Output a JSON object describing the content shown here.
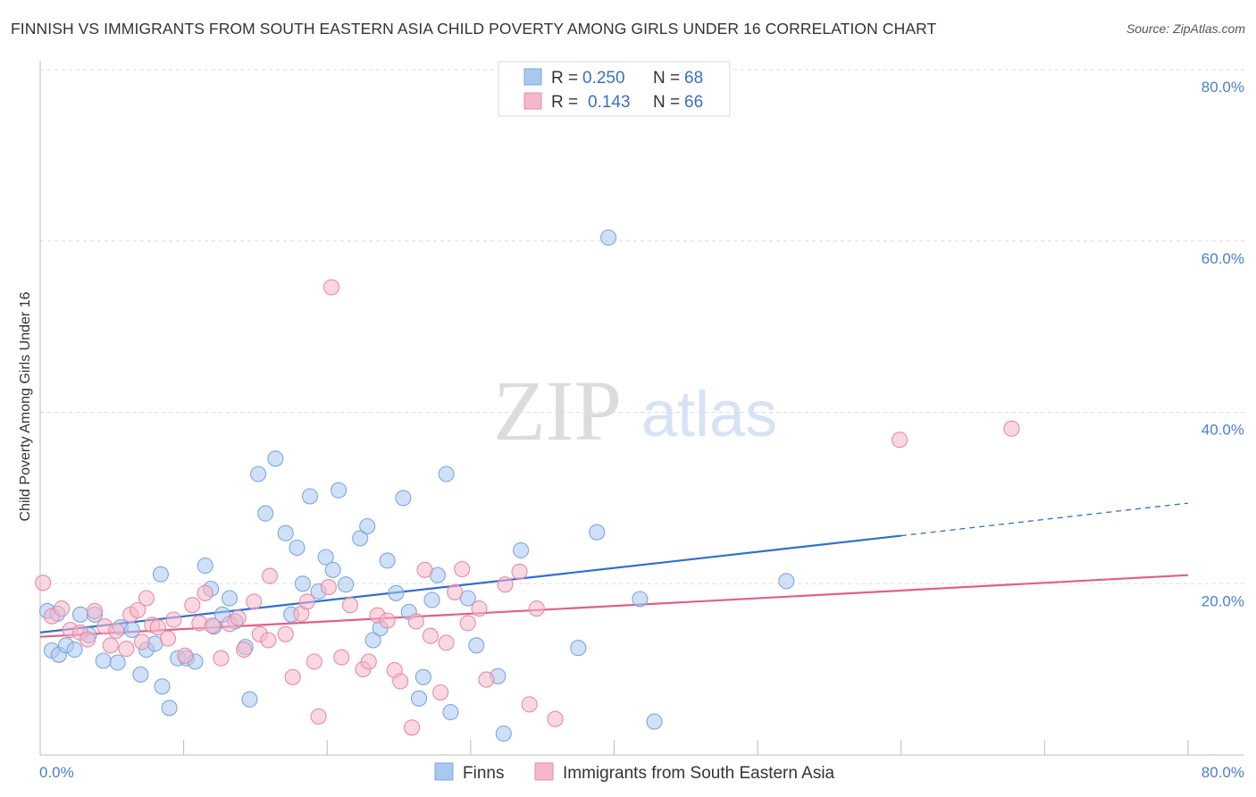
{
  "header": {
    "title": "FINNISH VS IMMIGRANTS FROM SOUTH EASTERN ASIA CHILD POVERTY AMONG GIRLS UNDER 16 CORRELATION CHART",
    "source": "Source: ZipAtlas.com"
  },
  "watermark": {
    "zip": "ZIP",
    "atlas": "atlas"
  },
  "legend": {
    "r_label": "R =",
    "n_label": "N =",
    "rows": [
      {
        "r": "0.250",
        "n": "68",
        "color": "#a9c8f0"
      },
      {
        "r": "0.143",
        "n": "66",
        "color": "#f5b8cb"
      }
    ]
  },
  "bottom_legend": {
    "series1": "Finns",
    "series2": "Immigrants from South Eastern Asia"
  },
  "chart_data": {
    "type": "scatter",
    "title": "FINNISH VS IMMIGRANTS FROM SOUTH EASTERN ASIA CHILD POVERTY AMONG GIRLS UNDER 16 CORRELATION CHART",
    "xlabel": "",
    "ylabel": "Child Poverty Among Girls Under 16",
    "xlim": [
      0,
      80
    ],
    "ylim": [
      0,
      80
    ],
    "x_tick_labels": [
      "0.0%",
      "80.0%"
    ],
    "y_ticks": [
      20,
      40,
      60,
      80
    ],
    "y_tick_labels": [
      "20.0%",
      "40.0%",
      "60.0%",
      "80.0%"
    ],
    "grid": true,
    "legend_position": "top-center",
    "series": [
      {
        "name": "Finns",
        "color": "#a9c8f0",
        "stroke": "#7ba7e0",
        "r": 0.25,
        "n": 68,
        "trend": {
          "x0": 0,
          "y0": 14.3,
          "x1": 60,
          "y1": 25.6,
          "dashed_to_x": 80,
          "dashed_to_y": 29.4,
          "color": "#2f6fd0"
        },
        "points": [
          [
            0.5,
            16.8
          ],
          [
            0.8,
            12.2
          ],
          [
            1.2,
            16.5
          ],
          [
            1.3,
            11.7
          ],
          [
            1.8,
            12.8
          ],
          [
            2.4,
            12.3
          ],
          [
            2.8,
            16.4
          ],
          [
            3.4,
            14.0
          ],
          [
            3.8,
            16.4
          ],
          [
            4.4,
            11.0
          ],
          [
            5.4,
            10.8
          ],
          [
            5.6,
            14.9
          ],
          [
            6.4,
            14.6
          ],
          [
            7.0,
            9.4
          ],
          [
            7.4,
            12.3
          ],
          [
            8.0,
            13.0
          ],
          [
            8.4,
            21.1
          ],
          [
            8.5,
            8.0
          ],
          [
            9.0,
            5.5
          ],
          [
            9.6,
            11.3
          ],
          [
            10.2,
            11.3
          ],
          [
            10.8,
            10.9
          ],
          [
            11.5,
            22.1
          ],
          [
            11.9,
            19.4
          ],
          [
            12.1,
            15.0
          ],
          [
            12.7,
            16.4
          ],
          [
            13.2,
            18.3
          ],
          [
            13.6,
            15.6
          ],
          [
            14.3,
            12.6
          ],
          [
            14.6,
            6.5
          ],
          [
            15.2,
            32.8
          ],
          [
            15.7,
            28.2
          ],
          [
            16.4,
            34.6
          ],
          [
            17.1,
            25.9
          ],
          [
            17.5,
            16.4
          ],
          [
            17.9,
            24.2
          ],
          [
            18.3,
            20.0
          ],
          [
            18.8,
            30.2
          ],
          [
            19.4,
            19.1
          ],
          [
            19.9,
            23.1
          ],
          [
            20.4,
            21.6
          ],
          [
            20.8,
            30.9
          ],
          [
            21.3,
            19.9
          ],
          [
            22.3,
            25.3
          ],
          [
            22.8,
            26.7
          ],
          [
            23.2,
            13.4
          ],
          [
            23.7,
            14.8
          ],
          [
            24.2,
            22.7
          ],
          [
            24.8,
            18.9
          ],
          [
            25.3,
            30.0
          ],
          [
            25.7,
            16.7
          ],
          [
            26.4,
            6.6
          ],
          [
            26.7,
            9.1
          ],
          [
            27.3,
            18.1
          ],
          [
            27.7,
            21.0
          ],
          [
            28.3,
            32.8
          ],
          [
            28.6,
            5.0
          ],
          [
            29.8,
            18.3
          ],
          [
            30.4,
            12.8
          ],
          [
            31.9,
            9.2
          ],
          [
            32.3,
            2.5
          ],
          [
            33.5,
            23.9
          ],
          [
            37.5,
            12.5
          ],
          [
            38.8,
            26.0
          ],
          [
            39.6,
            60.4
          ],
          [
            41.8,
            18.2
          ],
          [
            42.8,
            3.9
          ],
          [
            52.0,
            20.3
          ]
        ]
      },
      {
        "name": "Immigrants from South Eastern Asia",
        "color": "#f5b8cb",
        "stroke": "#e88aa8",
        "r": 0.143,
        "n": 66,
        "trend": {
          "x0": 0,
          "y0": 13.8,
          "x1": 80,
          "y1": 21.0,
          "color": "#e0608a"
        },
        "points": [
          [
            0.2,
            20.1
          ],
          [
            0.8,
            16.2
          ],
          [
            1.5,
            17.1
          ],
          [
            2.1,
            14.6
          ],
          [
            2.8,
            14.3
          ],
          [
            3.3,
            13.5
          ],
          [
            3.8,
            16.8
          ],
          [
            4.5,
            15.0
          ],
          [
            4.9,
            12.8
          ],
          [
            5.3,
            14.5
          ],
          [
            6.0,
            12.4
          ],
          [
            6.3,
            16.4
          ],
          [
            6.8,
            16.9
          ],
          [
            7.1,
            13.2
          ],
          [
            7.4,
            18.3
          ],
          [
            7.8,
            15.2
          ],
          [
            8.2,
            14.9
          ],
          [
            8.9,
            13.6
          ],
          [
            9.3,
            15.8
          ],
          [
            10.1,
            11.6
          ],
          [
            10.6,
            17.5
          ],
          [
            11.1,
            15.4
          ],
          [
            11.5,
            18.9
          ],
          [
            12.0,
            15.1
          ],
          [
            12.6,
            11.3
          ],
          [
            13.2,
            15.3
          ],
          [
            13.8,
            16.0
          ],
          [
            14.2,
            12.3
          ],
          [
            14.9,
            17.9
          ],
          [
            15.3,
            14.1
          ],
          [
            15.9,
            13.4
          ],
          [
            16.0,
            20.9
          ],
          [
            17.1,
            14.1
          ],
          [
            17.6,
            9.1
          ],
          [
            18.2,
            16.5
          ],
          [
            18.6,
            17.9
          ],
          [
            19.1,
            10.9
          ],
          [
            19.4,
            4.5
          ],
          [
            20.1,
            19.6
          ],
          [
            20.3,
            54.6
          ],
          [
            21.0,
            11.4
          ],
          [
            21.6,
            17.5
          ],
          [
            22.5,
            10.0
          ],
          [
            22.9,
            10.9
          ],
          [
            23.5,
            16.3
          ],
          [
            24.2,
            15.7
          ],
          [
            24.7,
            9.9
          ],
          [
            25.1,
            8.6
          ],
          [
            25.9,
            3.2
          ],
          [
            26.2,
            15.6
          ],
          [
            26.8,
            21.6
          ],
          [
            27.2,
            13.9
          ],
          [
            27.9,
            7.3
          ],
          [
            28.3,
            13.1
          ],
          [
            28.9,
            19.0
          ],
          [
            29.4,
            21.7
          ],
          [
            29.8,
            15.4
          ],
          [
            30.6,
            17.1
          ],
          [
            31.1,
            8.8
          ],
          [
            32.4,
            19.9
          ],
          [
            33.4,
            21.4
          ],
          [
            34.1,
            5.9
          ],
          [
            34.6,
            17.1
          ],
          [
            35.9,
            4.2
          ],
          [
            59.9,
            36.8
          ],
          [
            67.7,
            38.1
          ]
        ]
      }
    ]
  }
}
